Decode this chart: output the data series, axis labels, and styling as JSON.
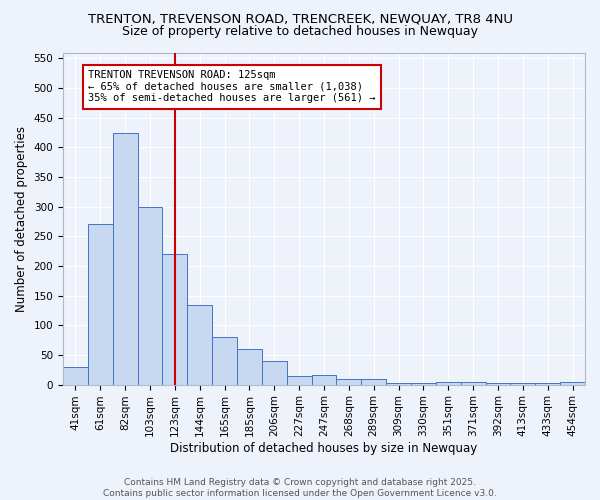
{
  "title_line1": "TRENTON, TREVENSON ROAD, TRENCREEK, NEWQUAY, TR8 4NU",
  "title_line2": "Size of property relative to detached houses in Newquay",
  "xlabel": "Distribution of detached houses by size in Newquay",
  "ylabel": "Number of detached properties",
  "bin_labels": [
    "41sqm",
    "61sqm",
    "82sqm",
    "103sqm",
    "123sqm",
    "144sqm",
    "165sqm",
    "185sqm",
    "206sqm",
    "227sqm",
    "247sqm",
    "268sqm",
    "289sqm",
    "309sqm",
    "330sqm",
    "351sqm",
    "371sqm",
    "392sqm",
    "413sqm",
    "433sqm",
    "454sqm"
  ],
  "bar_heights": [
    30,
    270,
    425,
    300,
    220,
    135,
    80,
    60,
    40,
    15,
    17,
    10,
    10,
    3,
    3,
    5,
    4,
    3,
    3,
    3,
    4
  ],
  "bar_color": "#c6d9f0",
  "bar_edge_color": "#4472c4",
  "marker_bin_index": 4,
  "marker_color": "#cc0000",
  "annotation_text": "TRENTON TREVENSON ROAD: 125sqm\n← 65% of detached houses are smaller (1,038)\n35% of semi-detached houses are larger (561) →",
  "annotation_box_color": "#ffffff",
  "annotation_box_edge": "#cc0000",
  "ylim": [
    0,
    560
  ],
  "yticks": [
    0,
    50,
    100,
    150,
    200,
    250,
    300,
    350,
    400,
    450,
    500,
    550
  ],
  "background_color": "#eef2fb",
  "grid_color": "#ffffff",
  "footnote": "Contains HM Land Registry data © Crown copyright and database right 2025.\nContains public sector information licensed under the Open Government Licence v3.0.",
  "title_fontsize": 9.5,
  "subtitle_fontsize": 9,
  "axis_label_fontsize": 8.5,
  "tick_fontsize": 7.5,
  "annotation_fontsize": 7.5,
  "footnote_fontsize": 6.5
}
